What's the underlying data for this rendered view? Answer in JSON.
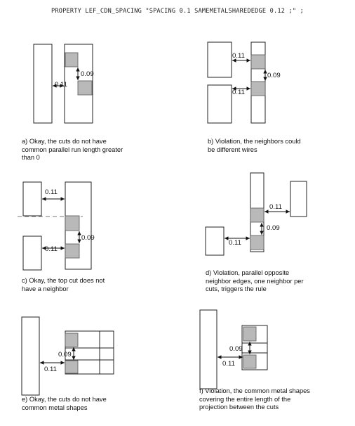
{
  "header": "PROPERTY LEF_CDN_SPACING \"SPACING 0.1 SAMEMETALSHAREDEDGE 0.12 ;\" ;",
  "figures": [
    {
      "id": "a",
      "caption_lines": [
        "a) Okay, the cuts do not have",
        "common parallel run length greater",
        "than 0"
      ],
      "labels": [
        "0.09",
        "0.11"
      ]
    },
    {
      "id": "b",
      "caption_lines": [
        "b) Violation, the neighbors could",
        "be different wires"
      ],
      "labels": [
        "0.11",
        "0.09",
        "0.11"
      ]
    },
    {
      "id": "c",
      "caption_lines": [
        "c) Okay, the top cut does not",
        "have a neighbor"
      ],
      "labels": [
        "0.11",
        "0.09",
        "0.11"
      ]
    },
    {
      "id": "d",
      "caption_lines": [
        "d) Violation, parallel opposite",
        "neighbor edges, one neighbor per",
        "cuts, triggers the rule"
      ],
      "labels": [
        "0.11",
        "0.09",
        "0.11"
      ]
    },
    {
      "id": "e",
      "caption_lines": [
        "e) Okay, the cuts do not have",
        "common metal shapes"
      ],
      "labels": [
        "0.09",
        "0.11"
      ]
    },
    {
      "id": "f",
      "caption_lines": [
        "f) Violation, the common metal shapes",
        "covering the entire length of the",
        "projection between the cuts"
      ],
      "labels": [
        "0.09",
        "0.11"
      ]
    }
  ]
}
